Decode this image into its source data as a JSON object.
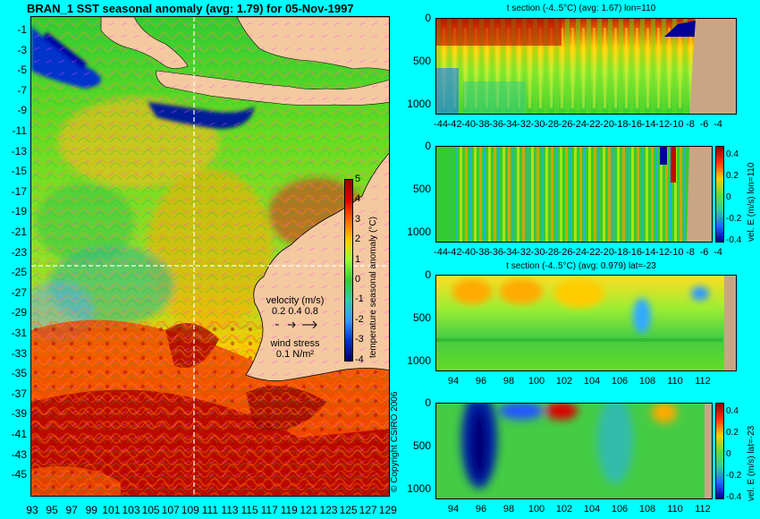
{
  "title": "BRAN_1 SST seasonal anomaly (avg: 1.79) for 05-Nov-1997",
  "map": {
    "lat_ticks": [
      "-1",
      "-3",
      "-5",
      "-7",
      "-9",
      "-11",
      "-13",
      "-15",
      "-17",
      "-19",
      "-21",
      "-23",
      "-25",
      "-27",
      "-29",
      "-31",
      "-33",
      "-35",
      "-37",
      "-39",
      "-41",
      "-43",
      "-45"
    ],
    "lon_ticks": [
      "93",
      "95",
      "97",
      "99",
      "101",
      "103",
      "105",
      "107",
      "109",
      "111",
      "113",
      "115",
      "117",
      "119",
      "121",
      "123",
      "125",
      "127",
      "129"
    ],
    "colorbar_ticks": [
      "5",
      "4",
      "3",
      "2",
      "1",
      "0",
      "-1",
      "-2",
      "-3",
      "-4"
    ],
    "colorbar_label": "temperature seasonal anomaly (°C)",
    "velocity_label": "velocity (m/s)",
    "velocity_values": "0.2 0.4 0.8",
    "wind_label": "wind stress",
    "wind_value": "0.1 N/m²",
    "copyright": "© Copyright CSIRO 2006",
    "crosshair_lat": -23,
    "crosshair_lon": 110,
    "colors": {
      "land": "#f5c9a0",
      "ocean_bg": "#33cc33",
      "warm": "#c00000",
      "cold": "#000080"
    }
  },
  "panels": [
    {
      "title": "t section (-4..5°C) (avg: 1.67) lon=110",
      "depth_ticks": [
        "0",
        "500",
        "1000"
      ],
      "x_ticks": [
        "-44",
        "-42",
        "-40",
        "-38",
        "-36",
        "-34",
        "-32",
        "-30",
        "-28",
        "-26",
        "-24",
        "-22",
        "-20",
        "-18",
        "-16",
        "-14",
        "-12",
        "-10",
        "-8",
        "-6",
        "-4"
      ],
      "colorbar": false
    },
    {
      "title": "",
      "depth_ticks": [
        "0",
        "500",
        "1000"
      ],
      "x_ticks": [
        "-44",
        "-42",
        "-40",
        "-38",
        "-36",
        "-34",
        "-32",
        "-30",
        "-28",
        "-26",
        "-24",
        "-22",
        "-20",
        "-18",
        "-16",
        "-14",
        "-12",
        "-10",
        "-8",
        "-6",
        "-4"
      ],
      "colorbar": true,
      "colorbar_ticks": [
        "0.4",
        "0.2",
        "0",
        "-0.2",
        "-0.4"
      ],
      "colorbar_label": "vel. E (m/s) lon=110"
    },
    {
      "title": "t section (-4..5°C) (avg: 0.979) lat=-23",
      "depth_ticks": [
        "0",
        "500",
        "1000"
      ],
      "x_ticks": [
        "94",
        "96",
        "98",
        "100",
        "102",
        "104",
        "106",
        "108",
        "110",
        "112"
      ],
      "colorbar": false
    },
    {
      "title": "",
      "depth_ticks": [
        "0",
        "500",
        "1000"
      ],
      "x_ticks": [
        "94",
        "96",
        "98",
        "100",
        "102",
        "104",
        "106",
        "108",
        "110",
        "112"
      ],
      "colorbar": true,
      "colorbar_ticks": [
        "0.4",
        "0.2",
        "0",
        "-0.2",
        "-0.4"
      ],
      "colorbar_label": "vel. E (m/s) lat=-23"
    }
  ]
}
